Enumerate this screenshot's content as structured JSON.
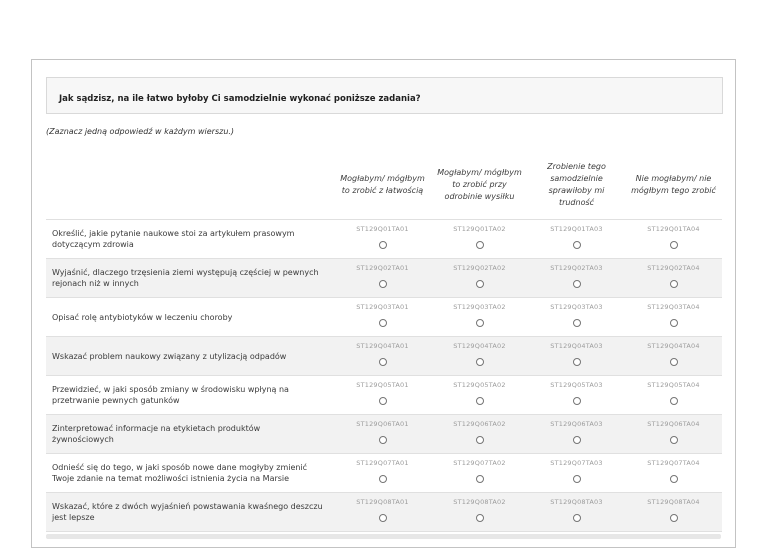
{
  "panel": {
    "title": "Jak sądzisz, na ile łatwo byłoby Ci samodzielnie wykonać poniższe zadania?",
    "instruction": "(Zaznacz jedną odpowiedź w każdym wierszu.)"
  },
  "table": {
    "columns": [
      {
        "label": "Mogłabym/ mógłbym to zrobić z łatwością"
      },
      {
        "label": "Mogłabym/ mógłbym to zrobić przy odrobinie wysiłku"
      },
      {
        "label": "Zrobienie tego samodzielnie sprawiłoby mi trudność"
      },
      {
        "label": "Nie mogłabym/ nie mógłbym tego zrobić"
      }
    ],
    "rows": [
      {
        "question": "Określić, jakie pytanie naukowe stoi za artykułem prasowym dotyczącym zdrowia",
        "codes": [
          "ST129Q01TA01",
          "ST129Q01TA02",
          "ST129Q01TA03",
          "ST129Q01TA04"
        ]
      },
      {
        "question": "Wyjaśnić, dlaczego trzęsienia ziemi występują częściej w pewnych rejonach niż w innych",
        "codes": [
          "ST129Q02TA01",
          "ST129Q02TA02",
          "ST129Q02TA03",
          "ST129Q02TA04"
        ]
      },
      {
        "question": "Opisać rolę antybiotyków w leczeniu choroby",
        "codes": [
          "ST129Q03TA01",
          "ST129Q03TA02",
          "ST129Q03TA03",
          "ST129Q03TA04"
        ]
      },
      {
        "question": "Wskazać problem naukowy związany z utylizacją odpadów",
        "codes": [
          "ST129Q04TA01",
          "ST129Q04TA02",
          "ST129Q04TA03",
          "ST129Q04TA04"
        ]
      },
      {
        "question": "Przewidzieć, w jaki sposób zmiany w środowisku wpłyną na przetrwanie pewnych gatunków",
        "codes": [
          "ST129Q05TA01",
          "ST129Q05TA02",
          "ST129Q05TA03",
          "ST129Q05TA04"
        ]
      },
      {
        "question": "Zinterpretować informacje na etykietach produktów żywnościowych",
        "codes": [
          "ST129Q06TA01",
          "ST129Q06TA02",
          "ST129Q06TA03",
          "ST129Q06TA04"
        ]
      },
      {
        "question": "Odnieść się do tego, w jaki sposób nowe dane mogłyby zmienić Twoje zdanie na temat możliwości istnienia życia na Marsie",
        "codes": [
          "ST129Q07TA01",
          "ST129Q07TA02",
          "ST129Q07TA03",
          "ST129Q07TA04"
        ]
      },
      {
        "question": "Wskazać, które z dwóch wyjaśnień powstawania kwaśnego deszczu jest lepsze",
        "codes": [
          "ST129Q08TA01",
          "ST129Q08TA02",
          "ST129Q08TA03",
          "ST129Q08TA04"
        ]
      }
    ],
    "radio_state": "unselected"
  },
  "colors": {
    "panel_border": "#c3c3c3",
    "title_bar_background": "#f7f7f7",
    "title_bar_border": "#d9d9d9",
    "row_stripe": "#f2f2f2",
    "row_separator": "#e0e0e0",
    "code_text": "#9c9c9c",
    "radio_border": "#757575"
  }
}
